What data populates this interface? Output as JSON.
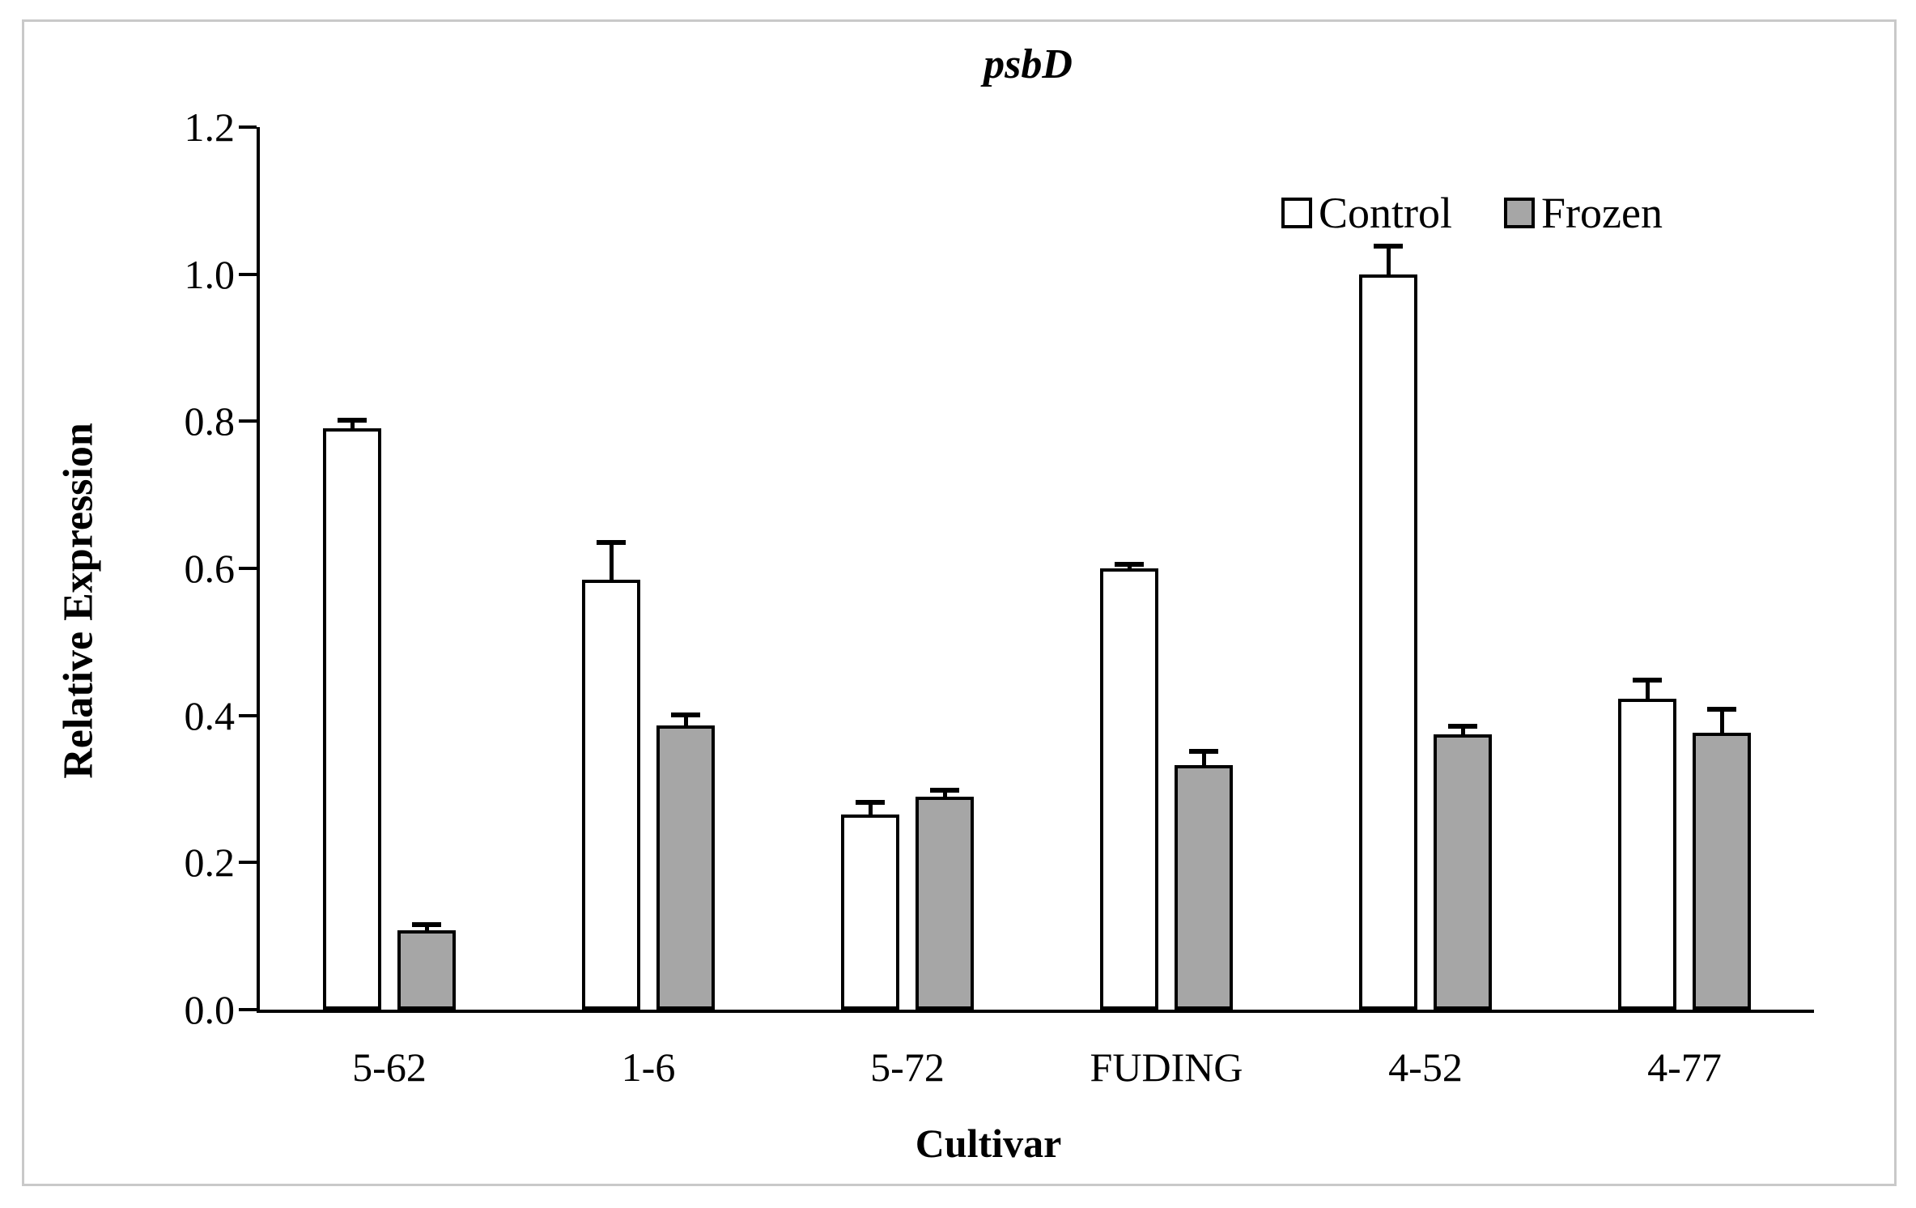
{
  "figure": {
    "border_color": "#c9c9c9",
    "background_color": "#ffffff",
    "line_color": "#000000"
  },
  "chart_data": {
    "type": "bar",
    "title": "psbD",
    "xlabel": "Cultivar",
    "ylabel": "Relative Expression",
    "categories": [
      "5-62",
      "1-6",
      "5-72",
      "FUDING",
      "4-52",
      "4-77"
    ],
    "series": [
      {
        "name": "Control",
        "fill": "#ffffff",
        "values": [
          0.79,
          0.585,
          0.265,
          0.6,
          1.0,
          0.423
        ],
        "errors": [
          0.012,
          0.05,
          0.017,
          0.006,
          0.038,
          0.025
        ]
      },
      {
        "name": "Frozen",
        "fill": "#a6a6a6",
        "values": [
          0.108,
          0.386,
          0.29,
          0.333,
          0.374,
          0.376
        ],
        "errors": [
          0.008,
          0.015,
          0.008,
          0.018,
          0.011,
          0.032
        ]
      }
    ],
    "ylim": [
      0,
      1.2
    ],
    "ytick_step": 0.2,
    "ytick_labels": [
      "0.0",
      "0.2",
      "0.4",
      "0.6",
      "0.8",
      "1.0",
      "1.2"
    ],
    "grid": false,
    "legend_position": "top-right",
    "error_bars": "upper"
  }
}
